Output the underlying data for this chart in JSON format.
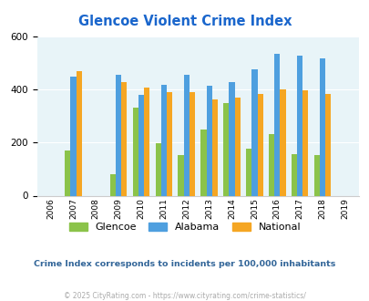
{
  "title": "Glencoe Violent Crime Index",
  "title_color": "#1a66cc",
  "all_years": [
    2006,
    2007,
    2008,
    2009,
    2010,
    2011,
    2012,
    2013,
    2014,
    2015,
    2016,
    2017,
    2018,
    2019
  ],
  "data_years": [
    2007,
    2009,
    2010,
    2011,
    2012,
    2013,
    2014,
    2015,
    2016,
    2017,
    2018
  ],
  "glencoe": [
    170,
    80,
    330,
    197,
    152,
    248,
    348,
    175,
    233,
    155,
    153
  ],
  "alabama": [
    448,
    455,
    378,
    418,
    455,
    415,
    428,
    475,
    535,
    525,
    518
  ],
  "national": [
    468,
    428,
    406,
    388,
    390,
    363,
    370,
    383,
    398,
    395,
    381
  ],
  "glencoe_color": "#8bc34a",
  "alabama_color": "#4e9fdf",
  "national_color": "#f5a623",
  "bg_color": "#e8f4f8",
  "ylim": [
    0,
    600
  ],
  "yticks": [
    0,
    200,
    400,
    600
  ],
  "subtitle": "Crime Index corresponds to incidents per 100,000 inhabitants",
  "subtitle_color": "#336699",
  "footer": "© 2025 CityRating.com - https://www.cityrating.com/crime-statistics/",
  "footer_color": "#aaaaaa",
  "bar_width": 0.25
}
